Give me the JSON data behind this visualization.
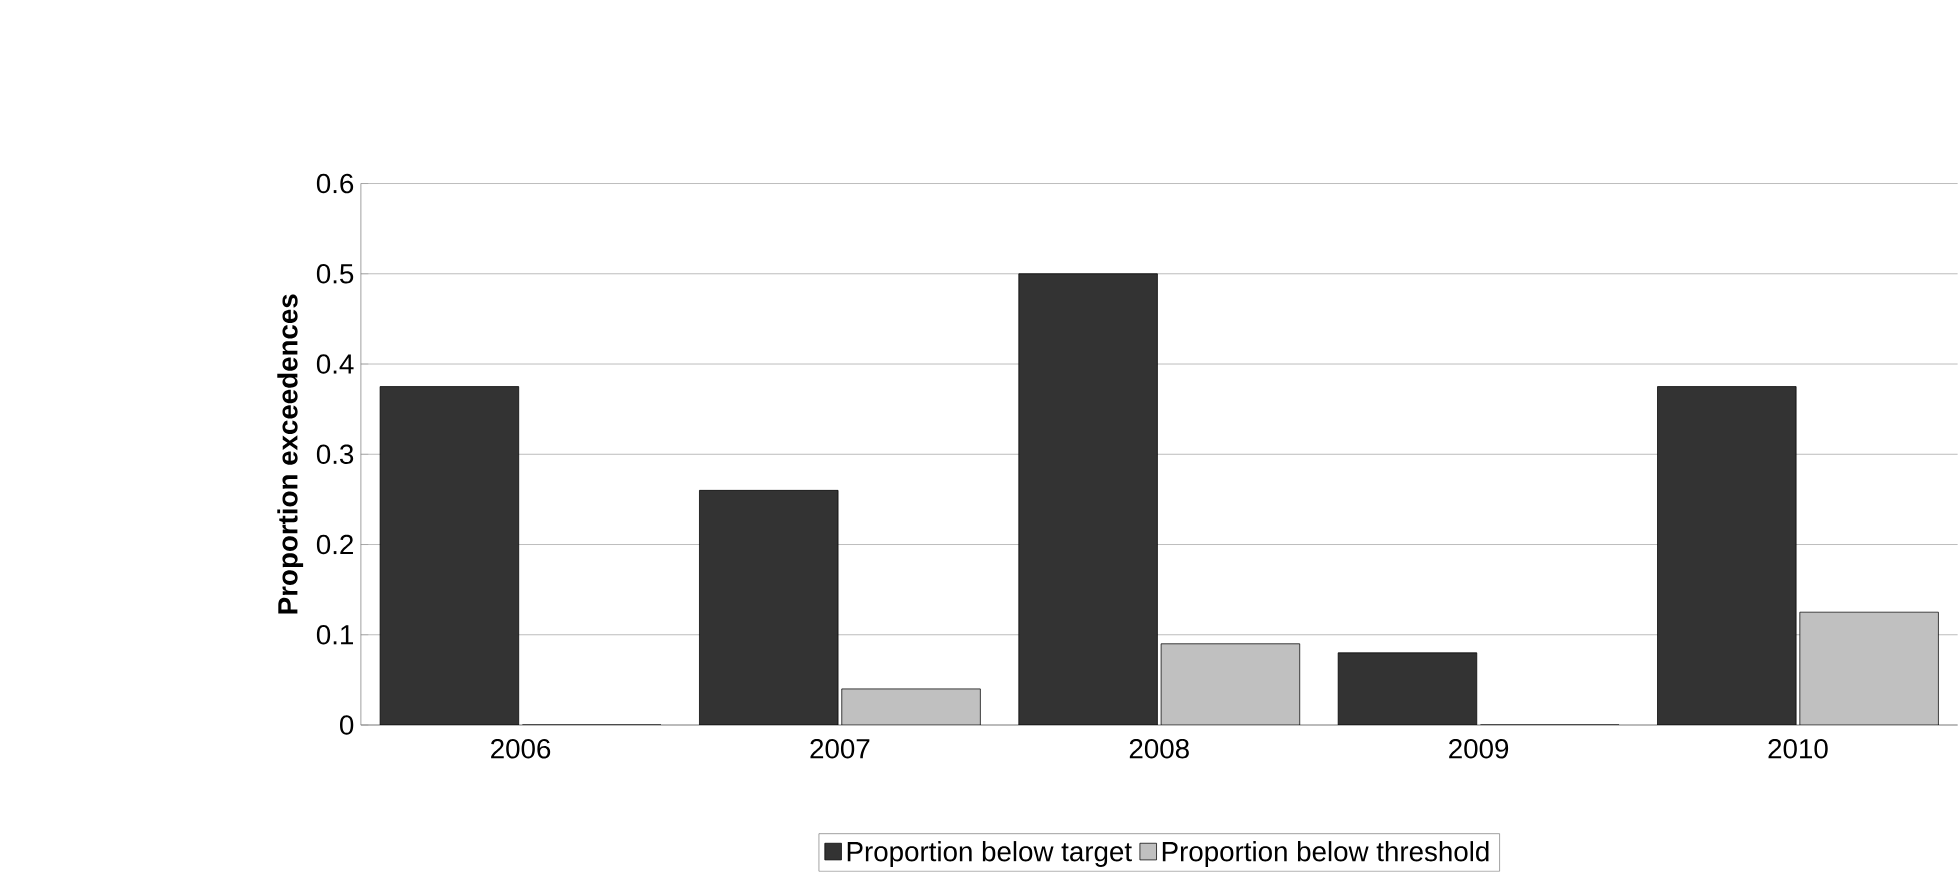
{
  "chart_data": {
    "type": "bar",
    "ylabel": "Proportion exceedences",
    "categories": [
      "2006",
      "2007",
      "2008",
      "2009",
      "2010"
    ],
    "series": [
      {
        "name": "Proportion below target",
        "color": "#333333",
        "values": [
          0.375,
          0.26,
          0.5,
          0.08,
          0.375
        ]
      },
      {
        "name": "Proportion below threshold",
        "color": "#c0c0c0",
        "values": [
          0,
          0.04,
          0.09,
          0,
          0.125
        ]
      }
    ],
    "ylim": [
      0,
      0.6
    ],
    "yticks": [
      0,
      0.1,
      0.2,
      0.3,
      0.4,
      0.5,
      0.6
    ],
    "grid": "y",
    "legend": "bottom"
  }
}
